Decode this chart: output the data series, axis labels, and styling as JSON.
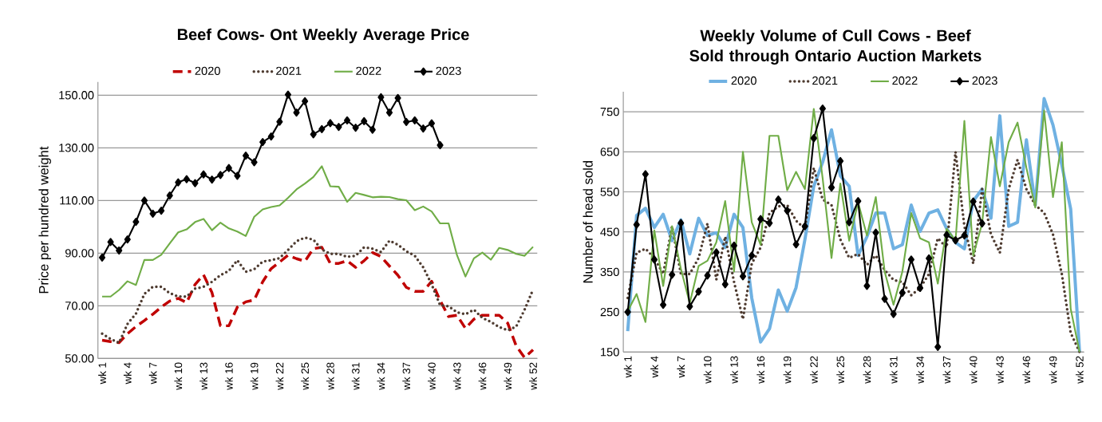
{
  "chart_data": [
    {
      "type": "line",
      "title": "Beef Cows- Ont Weekly Average Price",
      "ylabel": "Price per hundred weight",
      "categories": [
        "wk 1",
        null,
        null,
        "wk 4",
        null,
        null,
        "wk 7",
        null,
        null,
        "wk 10",
        null,
        null,
        "wk 13",
        null,
        null,
        "wk 16",
        null,
        null,
        "wk 19",
        null,
        null,
        "wk 22",
        null,
        null,
        "wk 25",
        null,
        null,
        "wk 28",
        null,
        null,
        "wk 31",
        null,
        null,
        "wk 34",
        null,
        null,
        "wk 37",
        null,
        null,
        "wk 40",
        null,
        null,
        "wk 43",
        null,
        null,
        "wk 46",
        null,
        null,
        "wk 49",
        null,
        null,
        "wk 52"
      ],
      "series": [
        {
          "name": "2020",
          "color": "#c00000",
          "line_style": "dashed",
          "marker": "none",
          "values": [
            56.9,
            56.4,
            56.0,
            59.4,
            62.1,
            64.4,
            66.8,
            69.5,
            71.8,
            72.8,
            71.2,
            78.1,
            81.8,
            75.0,
            62.4,
            62.4,
            69.5,
            71.5,
            72.2,
            79.1,
            84.1,
            86.6,
            89.2,
            87.9,
            86.9,
            91.7,
            92.2,
            86.1,
            86.1,
            87.1,
            84.6,
            87.1,
            90.2,
            88.7,
            85.1,
            81.6,
            77.0,
            75.5,
            75.5,
            79.3,
            72.0,
            65.9,
            66.4,
            61.4,
            64.9,
            66.4,
            66.4,
            66.4,
            63.4,
            54.8,
            50.3,
            53.3
          ]
        },
        {
          "name": "2021",
          "color": "#4e3b30",
          "line_style": "dotted",
          "marker": "none",
          "values": [
            59.4,
            57.4,
            55.9,
            63.1,
            67.0,
            74.5,
            77.2,
            77.2,
            74.8,
            73.5,
            73.5,
            76.5,
            77.2,
            79.1,
            81.6,
            83.3,
            87.3,
            82.9,
            83.9,
            86.8,
            87.3,
            88.1,
            91.2,
            94.5,
            95.9,
            95.1,
            91.4,
            89.7,
            89.7,
            88.6,
            89.0,
            92.2,
            91.7,
            90.4,
            94.7,
            93.2,
            90.7,
            89.0,
            84.6,
            78.1,
            70.2,
            69.8,
            67.5,
            66.8,
            68.5,
            65.4,
            63.9,
            61.9,
            60.7,
            62.1,
            68.5,
            76.2
          ]
        },
        {
          "name": "2022",
          "color": "#70ad47",
          "line_style": "solid",
          "marker": "none",
          "values": [
            73.5,
            73.5,
            76.0,
            79.3,
            77.9,
            87.4,
            87.4,
            89.4,
            93.7,
            97.9,
            99.0,
            101.8,
            103.0,
            98.7,
            101.6,
            99.4,
            98.2,
            96.5,
            103.8,
            106.6,
            107.5,
            108.1,
            111.0,
            114.2,
            116.4,
            118.9,
            123.0,
            115.4,
            115.2,
            109.5,
            112.9,
            112.1,
            111.2,
            111.4,
            111.3,
            110.5,
            110.1,
            106.3,
            107.7,
            105.8,
            101.3,
            101.3,
            89.2,
            81.1,
            88.0,
            90.2,
            87.5,
            92.0,
            91.2,
            89.7,
            89.0,
            92.4
          ]
        },
        {
          "name": "2023",
          "color": "#000000",
          "line_style": "solid",
          "marker": "diamond",
          "values": [
            88.3,
            94.2,
            91.0,
            95.2,
            101.9,
            110.0,
            105.0,
            106.1,
            111.9,
            116.9,
            118.1,
            116.6,
            119.9,
            117.9,
            119.7,
            122.3,
            119.4,
            127.0,
            124.5,
            132.2,
            134.3,
            139.9,
            150.2,
            143.4,
            147.7,
            135.1,
            137.1,
            139.4,
            137.9,
            140.4,
            137.6,
            140.1,
            136.9,
            149.2,
            143.4,
            148.9,
            139.8,
            140.4,
            137.3,
            139.3,
            131.0,
            null,
            null,
            null,
            null,
            null,
            null,
            null,
            null,
            null,
            null,
            null
          ]
        }
      ],
      "ylim": [
        50,
        155
      ],
      "yticks": [
        {
          "value": 50,
          "label": "50.00"
        },
        {
          "value": 70,
          "label": "70.00"
        },
        {
          "value": 90,
          "label": "90.00"
        },
        {
          "value": 110,
          "label": "110.00"
        },
        {
          "value": 130,
          "label": "130.00"
        },
        {
          "value": 150,
          "label": "150.00"
        }
      ],
      "grid": "y",
      "legend": "top"
    },
    {
      "type": "line",
      "title": "Weekly Volume of Cull Cows - Beef Sold through Ontario Auction Markets",
      "ylabel": "Number of head sold",
      "categories": [
        "wk 1",
        null,
        null,
        "wk 4",
        null,
        null,
        "wk 7",
        null,
        null,
        "wk 10",
        null,
        null,
        "wk 13",
        null,
        null,
        "wk 16",
        null,
        null,
        "wk 19",
        null,
        null,
        "wk 22",
        null,
        null,
        "wk 25",
        null,
        null,
        "wk 28",
        null,
        null,
        "wk 31",
        null,
        null,
        "wk 34",
        null,
        null,
        "wk 37",
        null,
        null,
        "wk 40",
        null,
        null,
        "wk 43",
        null,
        null,
        "wk 46",
        null,
        null,
        "wk 49",
        null,
        null,
        "wk 52"
      ],
      "series": [
        {
          "name": "2020",
          "color": "#6fb1e2",
          "line_style": "solid",
          "marker": "none",
          "values": [
            202,
            491,
            509,
            461,
            494,
            428,
            480,
            395,
            484,
            441,
            448,
            411,
            494,
            461,
            285,
            175,
            208,
            305,
            252,
            311,
            431,
            564,
            624,
            705,
            590,
            564,
            391,
            438,
            497,
            497,
            408,
            418,
            517,
            451,
            497,
            505,
            458,
            424,
            408,
            527,
            557,
            484,
            740,
            464,
            474,
            680,
            517,
            783,
            717,
            617,
            507,
            150
          ]
        },
        {
          "name": "2021",
          "color": "#4e3b30",
          "line_style": "dotted",
          "marker": "none",
          "values": [
            285,
            398,
            408,
            385,
            345,
            464,
            345,
            345,
            385,
            471,
            331,
            438,
            325,
            232,
            371,
            411,
            497,
            514,
            517,
            478,
            458,
            610,
            531,
            517,
            431,
            385,
            395,
            368,
            391,
            355,
            330,
            325,
            292,
            310,
            345,
            434,
            411,
            650,
            464,
            371,
            557,
            444,
            398,
            557,
            630,
            557,
            517,
            498,
            444,
            345,
            198,
            150
          ]
        },
        {
          "name": "2022",
          "color": "#70ad47",
          "line_style": "solid",
          "marker": "none",
          "values": [
            252,
            295,
            225,
            454,
            315,
            464,
            358,
            272,
            365,
            378,
            424,
            527,
            351,
            650,
            474,
            418,
            690,
            690,
            554,
            600,
            557,
            757,
            584,
            385,
            571,
            428,
            524,
            441,
            537,
            351,
            268,
            351,
            497,
            434,
            424,
            321,
            458,
            428,
            727,
            391,
            471,
            687,
            564,
            674,
            723,
            610,
            511,
            753,
            537,
            674,
            258,
            150
          ]
        },
        {
          "name": "2023",
          "color": "#000000",
          "line_style": "solid",
          "marker": "diamond",
          "values": [
            250,
            468,
            594,
            381,
            268,
            343,
            472,
            264,
            301,
            341,
            399,
            319,
            416,
            339,
            391,
            482,
            472,
            531,
            503,
            419,
            464,
            684,
            758,
            561,
            627,
            474,
            527,
            315,
            448,
            283,
            245,
            298,
            381,
            310,
            384,
            163,
            442,
            429,
            441,
            526,
            471,
            null,
            null,
            null,
            null,
            null,
            null,
            null,
            null,
            null,
            null,
            null
          ]
        }
      ],
      "ylim": [
        150,
        800
      ],
      "yticks": [
        150,
        250,
        350,
        450,
        550,
        650,
        750
      ],
      "grid": "y",
      "legend": "top"
    }
  ]
}
